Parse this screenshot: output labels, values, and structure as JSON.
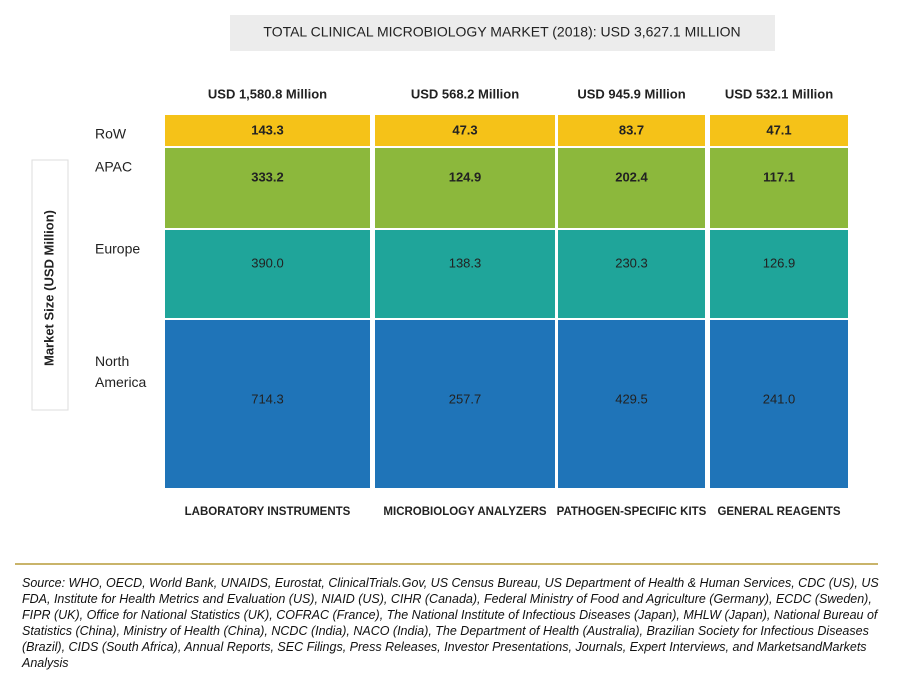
{
  "chart_data": {
    "type": "mosaic",
    "title": "TOTAL CLINICAL MICROBIOLOGY MARKET (2018): USD 3,627.1 MILLION",
    "y_label": "Market Size (USD Million)",
    "categories": [
      "LABORATORY INSTRUMENTS",
      "MICROBIOLOGY ANALYZERS",
      "PATHOGEN-SPECIFIC KITS",
      "GENERAL REAGENTS"
    ],
    "column_totals": [
      "USD 1,580.8 Million",
      "USD  568.2 Million",
      "USD 945.9 Million",
      "USD 532.1 Million"
    ],
    "series": [
      {
        "name": "RoW",
        "color": "#f5c218",
        "label_color": "#222222",
        "values": [
          143.3,
          47.3,
          83.7,
          47.1
        ],
        "value_labels": [
          "143.3",
          "47.3",
          "83.7",
          "47.1"
        ]
      },
      {
        "name": "APAC",
        "color": "#8cb83c",
        "label_color": "#ffffff",
        "values": [
          333.2,
          124.9,
          202.4,
          117.1
        ],
        "value_labels": [
          "333.2",
          "124.9",
          "202.4",
          "117.1"
        ]
      },
      {
        "name": "Europe",
        "color": "#1fa59a",
        "label_color": "#ffffff",
        "values": [
          390.0,
          138.3,
          230.3,
          126.9
        ],
        "value_labels": [
          "390.0",
          "138.3",
          "230.3",
          "126.9"
        ]
      },
      {
        "name": "North America",
        "color": "#1f74b8",
        "label_color": "#ffffff",
        "values": [
          714.3,
          257.7,
          429.5,
          241.0
        ],
        "value_labels": [
          "714.3",
          "257.7",
          "429.5",
          "241.0"
        ]
      }
    ],
    "source": "Source: WHO, OECD, World Bank, UNAIDS, Eurostat, ClinicalTrials.Gov, US Census Bureau, US Department of Health & Human Services, CDC (US), US FDA, Institute for Health Metrics and Evaluation (US), NIAID (US), CIHR (Canada), Federal Ministry of Food and Agriculture (Germany), ECDC (Sweden), FIPR (UK), Office for National Statistics (UK), COFRAC (France), The National Institute of Infectious Diseases (Japan), MHLW (Japan), National Bureau of Statistics (China), Ministry of Health (China), NCDC (India), NACO (India), The Department of Health (Australia), Brazilian Society for Infectious Diseases (Brazil), CIDS (South Africa), Annual Reports, SEC Filings, Press Releases, Investor Presentations, Journals, Expert Interviews, and MarketsandMarkets Analysis"
  }
}
